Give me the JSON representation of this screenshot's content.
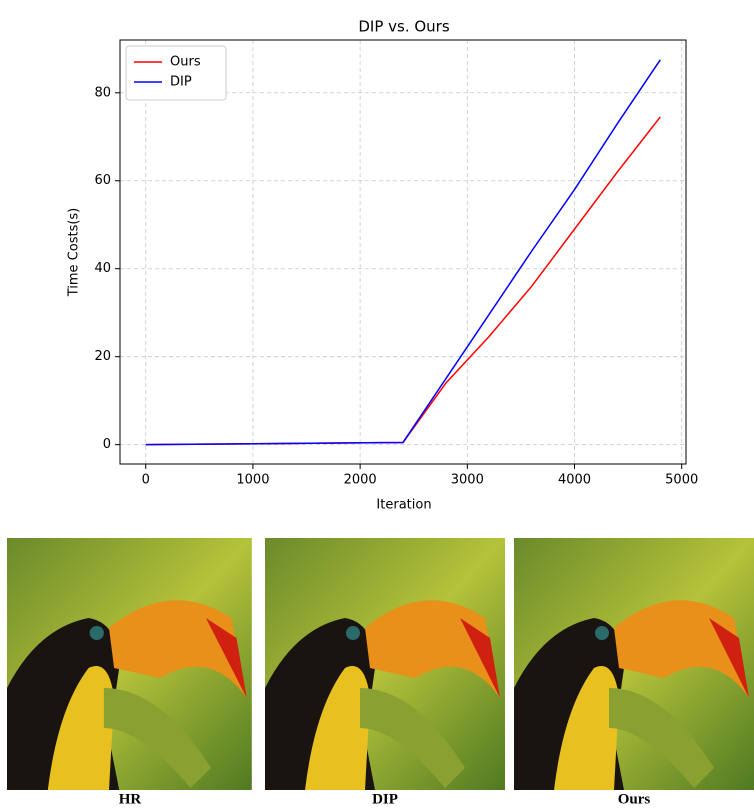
{
  "chart_data": {
    "type": "line",
    "title": "DIP vs. Ours",
    "x_label": "Iteration",
    "y_label": "Time Costs(s)",
    "x": [
      0,
      2400,
      2800,
      3200,
      3600,
      4000,
      4400,
      4800
    ],
    "series": [
      {
        "name": "Ours",
        "color": "#ff0000",
        "values": [
          0,
          0.5,
          14,
          24.5,
          36,
          49,
          62,
          74.5
        ]
      },
      {
        "name": "DIP",
        "color": "#0000ff",
        "values": [
          0,
          0.5,
          15,
          29.5,
          44,
          58,
          73,
          87.5
        ]
      }
    ],
    "xlim": [
      -240,
      5040
    ],
    "ylim": [
      -4.4,
      92
    ],
    "xticks": [
      0,
      1000,
      2000,
      3000,
      4000,
      5000
    ],
    "yticks": [
      0,
      20,
      40,
      60,
      80
    ],
    "grid": true,
    "legend": "upper-left"
  },
  "image_captions": [
    "HR",
    "DIP",
    "Ours"
  ]
}
